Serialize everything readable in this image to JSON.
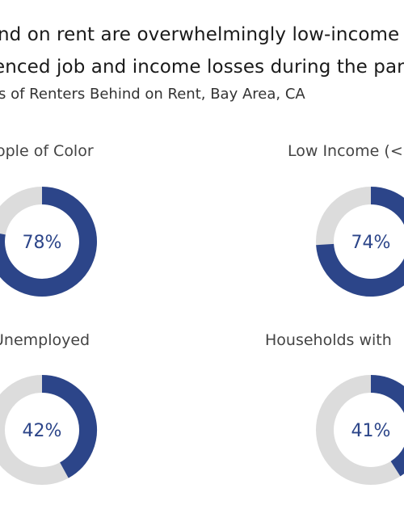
{
  "title": {
    "line1": "nd on rent are overwhelmingly low-income",
    "line2": "enced job and income losses during the pan"
  },
  "subtitle": "s of Renters Behind on Rent,  Bay Area, CA",
  "colors": {
    "filled": "#2c4589",
    "track": "#dcdcdc",
    "text": "#2c4589"
  },
  "chart_data": {
    "type": "pie",
    "variant": "donut",
    "donuts": [
      {
        "label": "ople of Color",
        "value": 78,
        "value_label": "78%"
      },
      {
        "label": "Low Income (<",
        "value": 74,
        "value_label": "74%"
      },
      {
        "label": "Unemployed",
        "value": 42,
        "value_label": "42%"
      },
      {
        "label": "Households with",
        "value": 41,
        "value_label": "41%"
      }
    ]
  }
}
